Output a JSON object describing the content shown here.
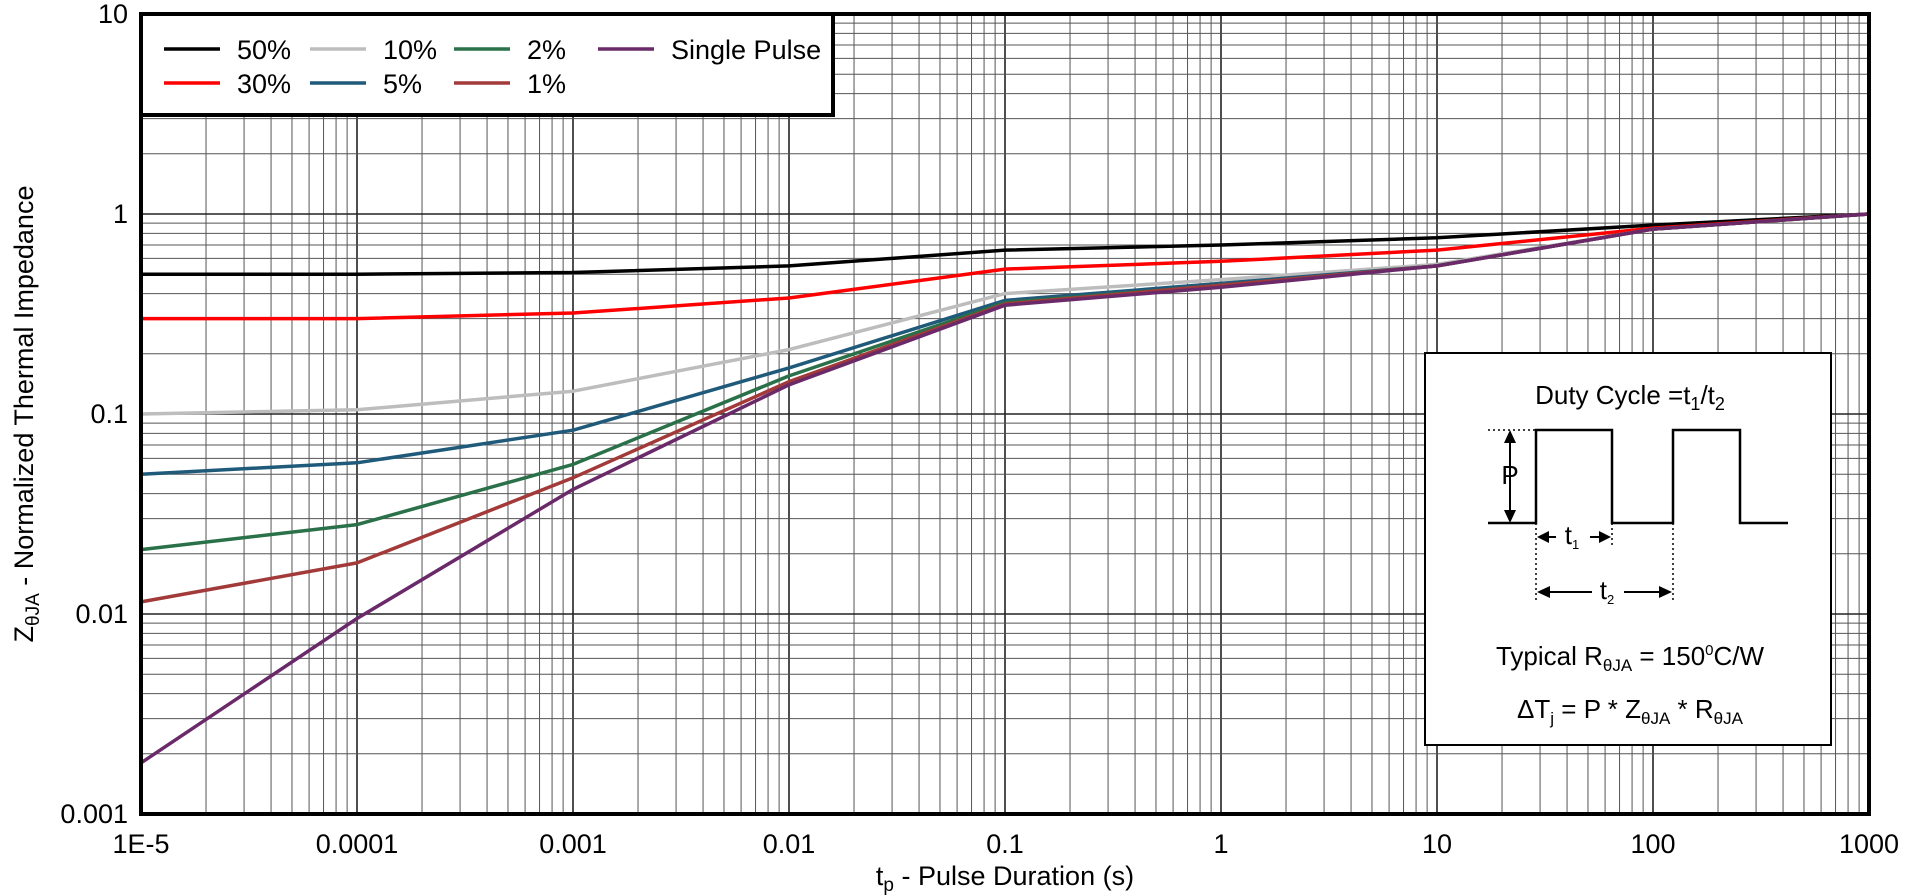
{
  "chart_data": {
    "type": "line",
    "title": "",
    "xlabel": "t_p - Pulse Duration (s)",
    "xlabel_parts": {
      "main": "t",
      "sub": "p",
      "rest": " - Pulse Duration (s)"
    },
    "ylabel": "Z_θJA - Normalized Thermal Impedance",
    "ylabel_parts": {
      "main": "Z",
      "sub": "θJA",
      "rest": " - Normalized Thermal Impedance"
    },
    "xscale": "log",
    "yscale": "log",
    "xlim": [
      1e-05,
      1000
    ],
    "ylim": [
      0.001,
      10
    ],
    "grid": true,
    "legend_position": "top-left",
    "x_tick_labels": [
      "1E-5",
      "0.0001",
      "0.001",
      "0.01",
      "0.1",
      "1",
      "10",
      "100",
      "1000"
    ],
    "y_tick_labels": [
      "0.001",
      "0.01",
      "0.1",
      "1",
      "10"
    ],
    "x": [
      1e-05,
      0.0001,
      0.001,
      0.01,
      0.1,
      1,
      10,
      100,
      1000
    ],
    "series": [
      {
        "name": "50%",
        "color": "#000000",
        "values": [
          0.5,
          0.5,
          0.51,
          0.55,
          0.66,
          0.7,
          0.76,
          0.88,
          1.0
        ]
      },
      {
        "name": "30%",
        "color": "#ff0000",
        "values": [
          0.3,
          0.3,
          0.32,
          0.38,
          0.53,
          0.58,
          0.66,
          0.85,
          1.0
        ]
      },
      {
        "name": "10%",
        "color": "#bdbdbd",
        "values": [
          0.1,
          0.105,
          0.13,
          0.21,
          0.4,
          0.47,
          0.56,
          0.84,
          1.0
        ]
      },
      {
        "name": "5%",
        "color": "#1f5a7a",
        "values": [
          0.05,
          0.057,
          0.083,
          0.17,
          0.37,
          0.45,
          0.55,
          0.84,
          1.0
        ]
      },
      {
        "name": "2%",
        "color": "#2a7049",
        "values": [
          0.021,
          0.028,
          0.056,
          0.155,
          0.36,
          0.44,
          0.55,
          0.84,
          1.0
        ]
      },
      {
        "name": "1%",
        "color": "#a33a3a",
        "values": [
          0.0115,
          0.018,
          0.048,
          0.145,
          0.355,
          0.44,
          0.55,
          0.84,
          1.0
        ]
      },
      {
        "name": "Single Pulse",
        "color": "#6a2a6a",
        "values": [
          0.0018,
          0.0095,
          0.042,
          0.14,
          0.35,
          0.43,
          0.55,
          0.84,
          1.0
        ]
      }
    ],
    "inset": {
      "duty_cycle_label": "Duty Cycle =t",
      "duty_cycle_sub1": "1",
      "duty_cycle_mid": "/t",
      "duty_cycle_sub2": "2",
      "p_label": "P",
      "t1_label": "t",
      "t1_sub": "1",
      "t2_label": "t",
      "t2_sub": "2",
      "typical_label": "Typical R",
      "typical_sub": "θJA",
      "typical_value": " = 150",
      "typical_sup": "0",
      "typical_unit": "C/W",
      "formula_start": "ΔT",
      "formula_sub_j": "j",
      "formula_mid": " = P * Z",
      "formula_sub_z": "θJA",
      "formula_mid2": " * R",
      "formula_sub_r": "θJA"
    }
  }
}
